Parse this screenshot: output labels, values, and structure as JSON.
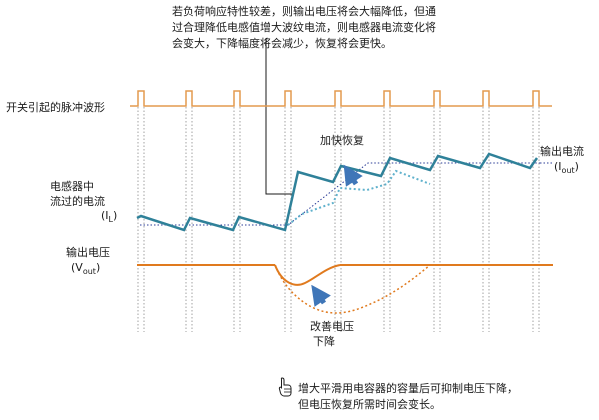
{
  "top_note": {
    "lines": [
      "若负荷响应特性较差，则输出电压将会大幅降低，但通",
      "过合理降低电感值增大波纹电流，则电感器电流变化将",
      "会变大，下降幅度将会减少，恢复将会更快。"
    ]
  },
  "labels": {
    "switch_waveform": "开关引起的脉冲波形",
    "fast_recovery": "加快恢复",
    "inductor_current_line1": "电感器中",
    "inductor_current_line2": "流过的电流",
    "inductor_symbol_open": "(I",
    "inductor_symbol_sub": "L",
    "inductor_symbol_close": ")",
    "output_current": "输出电流",
    "output_current_symbol_open": "(I",
    "output_current_symbol_sub": "out",
    "output_current_symbol_close": ")",
    "output_voltage": "输出电压",
    "output_voltage_symbol_open": "(V",
    "output_voltage_symbol_sub": "out",
    "output_voltage_symbol_close": ")",
    "improve_drop_line1": "改善电压",
    "improve_drop_line2": "下降"
  },
  "bottom_note": {
    "icon": "pointing-hand-icon",
    "lines": [
      "增大平滑用电容器的容量后可抑制电压下降，",
      "但电压恢复所需时间会变长。"
    ]
  },
  "colors": {
    "pulse": "#e39a4e",
    "inductor": "#2f8199",
    "inductor_dotted": "#5fb1cc",
    "reference": "#2b3c97",
    "voltage": "#e07a1e",
    "arrow": "#3f76b8",
    "grid": "#8a8a8a"
  }
}
